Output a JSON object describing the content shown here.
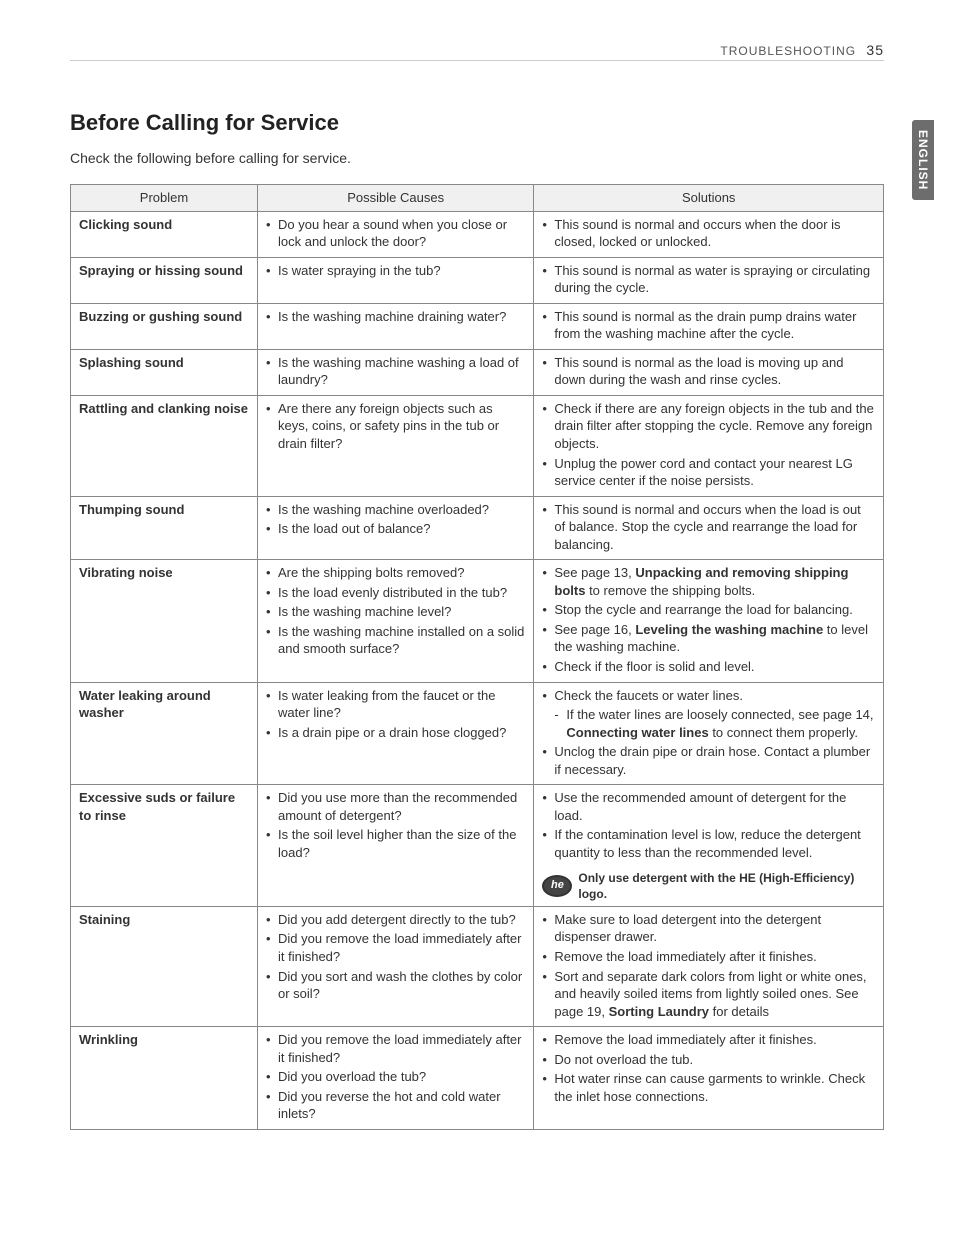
{
  "header": {
    "section": "TROUBLESHOOTING",
    "page_number": "35"
  },
  "lang_tab": "ENGLISH",
  "title": "Before Calling for Service",
  "intro": "Check the following before calling for service.",
  "columns": {
    "problem": "Problem",
    "causes": "Possible Causes",
    "solutions": "Solutions"
  },
  "he_note": {
    "badge": "he",
    "text": "Only use detergent with the HE (High-Efficiency) logo."
  },
  "rows": [
    {
      "problem": "Clicking sound",
      "causes": [
        "Do you hear a sound when you close or lock and unlock the door?"
      ],
      "solutions": [
        "This sound is normal and occurs when the door is closed, locked or unlocked."
      ]
    },
    {
      "problem": "Spraying or hissing sound",
      "causes": [
        "Is water spraying in the tub?"
      ],
      "solutions": [
        "This sound is normal as water is spraying or circulating during the cycle."
      ]
    },
    {
      "problem": "Buzzing or gushing sound",
      "causes": [
        "Is the washing machine draining water?"
      ],
      "solutions": [
        "This sound is normal as the drain pump drains water from the washing machine after the cycle."
      ]
    },
    {
      "problem": "Splashing sound",
      "causes": [
        "Is the washing machine washing a load of laundry?"
      ],
      "solutions": [
        "This sound is normal as the load is moving up and down during the wash and rinse cycles."
      ]
    },
    {
      "problem": "Rattling and clanking noise",
      "causes": [
        "Are there any foreign objects such as keys, coins, or safety pins in the tub or drain filter?"
      ],
      "solutions": [
        "Check if there are any foreign objects in the tub and the drain filter after stopping the cycle. Remove any foreign objects.",
        "Unplug the power cord and contact your nearest LG service center if the noise persists."
      ]
    },
    {
      "problem": "Thumping sound",
      "causes": [
        "Is the washing machine overloaded?",
        "Is the load out of balance?"
      ],
      "solutions": [
        "This sound is normal and occurs when the load is out of balance. Stop the cycle and rearrange the load for balancing."
      ]
    },
    {
      "problem": "Vibrating noise",
      "causes": [
        "Are the shipping bolts removed?",
        "Is the load evenly distributed in the tub?",
        "Is the washing machine level?",
        "Is the washing machine installed on a solid and smooth surface?"
      ],
      "solutions_rich": [
        {
          "type": "li",
          "segments": [
            {
              "t": "See page 13, "
            },
            {
              "t": "Unpacking and removing shipping bolts",
              "bold": true
            },
            {
              "t": " to remove the shipping bolts."
            }
          ]
        },
        {
          "type": "li",
          "segments": [
            {
              "t": "Stop the cycle and rearrange the load for balancing."
            }
          ]
        },
        {
          "type": "li",
          "segments": [
            {
              "t": "See page 16, "
            },
            {
              "t": "Leveling the washing machine",
              "bold": true
            },
            {
              "t": " to level the washing machine."
            }
          ]
        },
        {
          "type": "li",
          "segments": [
            {
              "t": "Check if the floor is solid and level."
            }
          ]
        }
      ]
    },
    {
      "problem": "Water leaking around washer",
      "causes": [
        "Is water leaking from the faucet or the water line?",
        "Is a drain pipe or a drain hose clogged?"
      ],
      "solutions_rich": [
        {
          "type": "li",
          "segments": [
            {
              "t": "Check the faucets or water lines."
            }
          ]
        },
        {
          "type": "sub",
          "segments": [
            {
              "t": "If the water lines are loosely connected, see page 14, "
            },
            {
              "t": "Connecting water lines",
              "bold": true
            },
            {
              "t": " to connect them properly."
            }
          ]
        },
        {
          "type": "li",
          "segments": [
            {
              "t": "Unclog the drain pipe or drain hose. Contact a plumber if necessary."
            }
          ]
        }
      ]
    },
    {
      "problem": "Excessive suds or failure to rinse",
      "causes": [
        "Did you use more than the recommended amount of detergent?",
        "Is the soil level higher than the size of the load?"
      ],
      "solutions": [
        "Use the recommended amount of detergent for the load.",
        "If the contamination level is low, reduce the detergent quantity to less than the recommended level."
      ],
      "he_note": true
    },
    {
      "problem": "Staining",
      "causes": [
        "Did you add detergent directly to the tub?",
        "Did you remove the load immediately after it finished?",
        "Did you sort and wash the clothes by color or soil?"
      ],
      "solutions_rich": [
        {
          "type": "li",
          "segments": [
            {
              "t": "Make sure to load detergent into the detergent dispenser drawer."
            }
          ]
        },
        {
          "type": "li",
          "segments": [
            {
              "t": "Remove the load immediately after it finishes."
            }
          ]
        },
        {
          "type": "li",
          "segments": [
            {
              "t": "Sort and separate dark colors from light or white ones, and heavily soiled items from lightly soiled ones. See page 19, "
            },
            {
              "t": "Sorting Laundry",
              "bold": true
            },
            {
              "t": " for details"
            }
          ]
        }
      ]
    },
    {
      "problem": "Wrinkling",
      "causes": [
        "Did you remove the load immediately after it finished?",
        "Did you overload the tub?",
        "Did you reverse the hot and cold water inlets?"
      ],
      "solutions": [
        "Remove the load immediately after it finishes.",
        "Do not overload the tub.",
        "Hot water rinse can cause garments to wrinkle. Check the inlet hose connections."
      ]
    }
  ]
}
